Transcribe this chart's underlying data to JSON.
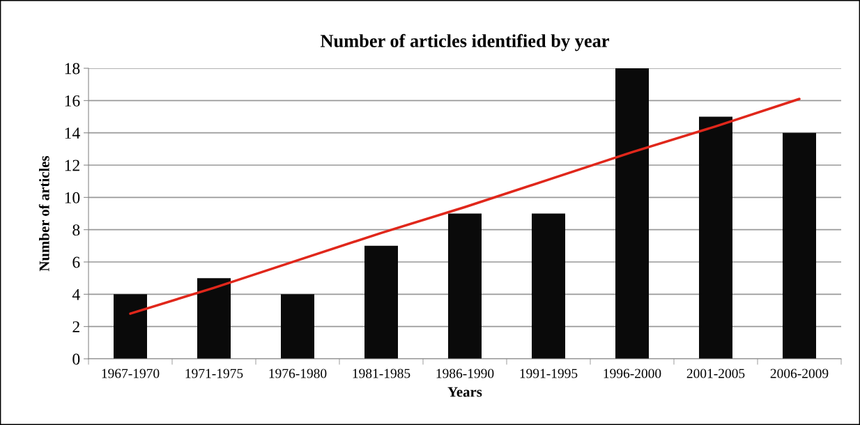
{
  "chart_data": {
    "type": "bar",
    "title": "Number of articles identified by year",
    "xlabel": "Years",
    "ylabel": "Number of articles",
    "categories": [
      "1967-1970",
      "1971-1975",
      "1976-1980",
      "1981-1985",
      "1986-1990",
      "1991-1995",
      "1996-2000",
      "2001-2005",
      "2006-2009"
    ],
    "series": [
      {
        "color": "#0a0a0a",
        "values": [
          4,
          5,
          4,
          7,
          9,
          9,
          18,
          15,
          14
        ]
      },
      {
        "type": "line",
        "color": "#e0271b",
        "values": [
          2.8,
          4.4,
          6.1,
          7.8,
          9.4,
          11.1,
          12.8,
          14.4,
          16.1
        ]
      }
    ],
    "ylim": [
      0,
      18
    ],
    "yticks": [
      0,
      2,
      4,
      6,
      8,
      10,
      12,
      14,
      16,
      18
    ],
    "grid": "y",
    "legend": false
  }
}
